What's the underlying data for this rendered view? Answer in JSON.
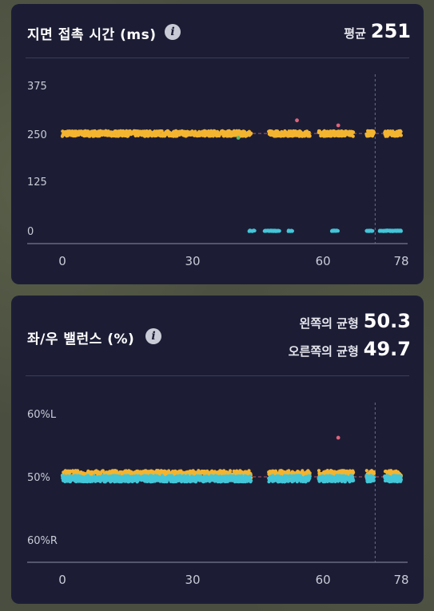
{
  "ground_contact": {
    "title": "지면 접촉 시간 (ms)",
    "avg_label": "평균",
    "avg_value": "251"
  },
  "balance": {
    "title": "좌/우 밸런스 (%)",
    "left_label": "왼쪽의 균형",
    "left_value": "50.3",
    "right_label": "오른쪽의 균형",
    "right_value": "49.7"
  },
  "info_glyph": "i",
  "colors": {
    "card": "#1c1d35",
    "orange": "#f3b431",
    "yellow": "#f2d54a",
    "cyan": "#43c6d8",
    "red": "#e0647a",
    "green": "#59b86a"
  },
  "chart_data": [
    {
      "type": "scatter",
      "title": "지면 접촉 시간 (ms)",
      "x_ticks": [
        "0",
        "30",
        "60",
        "78"
      ],
      "y_ticks": [
        "375",
        "250",
        "125",
        "0"
      ],
      "xlim": [
        0,
        78
      ],
      "ylim": [
        0,
        375
      ],
      "reference_line": 251,
      "marker_x": 72,
      "series": [
        {
          "color": "orange",
          "x_ranges": [
            [
              0,
              43.5
            ],
            [
              47.5,
              57
            ],
            [
              59,
              67
            ],
            [
              70,
              71.8
            ],
            [
              74.2,
              78
            ]
          ],
          "mean": 251,
          "spread": 7
        },
        {
          "color": "cyan",
          "x_ranges": [
            [
              43,
              44.3
            ],
            [
              46.5,
              50
            ],
            [
              52,
              53
            ],
            [
              62,
              63.5
            ],
            [
              70,
              71.5
            ],
            [
              73,
              78
            ]
          ],
          "value": 0
        }
      ],
      "outliers": [
        {
          "x": 54,
          "y": 285,
          "color": "red"
        },
        {
          "x": 63.5,
          "y": 272,
          "color": "red"
        },
        {
          "x": 40.5,
          "y": 240,
          "color": "green"
        }
      ]
    },
    {
      "type": "scatter",
      "title": "좌/우 밸런스 (%)",
      "x_ticks": [
        "0",
        "30",
        "60",
        "78"
      ],
      "y_ticks": [
        "60%L",
        "50%",
        "60%R"
      ],
      "xlim": [
        0,
        78
      ],
      "ylim": [
        40,
        60
      ],
      "reference_line": 50,
      "marker_x": 72,
      "series": [
        {
          "color": "orange",
          "x_ranges": [
            [
              0,
              43.5
            ],
            [
              47.5,
              57
            ],
            [
              59,
              67
            ],
            [
              70,
              71.8
            ],
            [
              74.2,
              78
            ]
          ],
          "mean": 50.3,
          "spread": 0.7
        },
        {
          "color": "cyan",
          "x_ranges": [
            [
              0,
              43.5
            ],
            [
              47.5,
              57
            ],
            [
              59,
              67
            ],
            [
              70,
              71.8
            ],
            [
              74.2,
              78
            ]
          ],
          "mean": 49.7,
          "spread": 0.5
        }
      ],
      "outliers": [
        {
          "x": 63.5,
          "y": 56.2,
          "color": "red"
        }
      ]
    }
  ]
}
